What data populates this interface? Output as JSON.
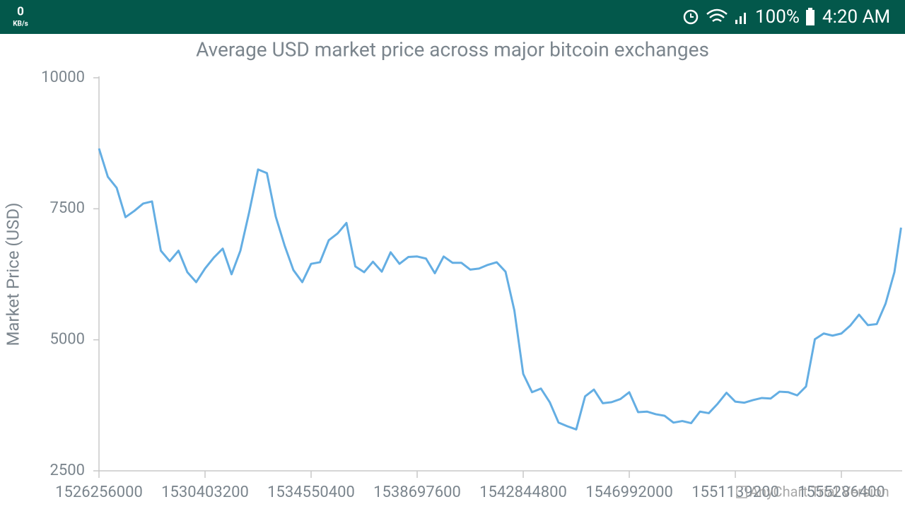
{
  "status_bar": {
    "network_speed": "0",
    "network_unit": "KB/s",
    "battery": "100%",
    "time": "4:20 AM"
  },
  "watermark": "AnyChart Trial Version",
  "chart_data": {
    "type": "line",
    "title": "Average USD market price across major bitcoin exchanges",
    "y_label": "Market Price (USD)",
    "color": "#64aee3",
    "x": [
      1526256000,
      1526601600,
      1526947200,
      1527292800,
      1527638400,
      1527984000,
      1528329600,
      1528675200,
      1529020800,
      1529366400,
      1529712000,
      1530057600,
      1530403200,
      1530748800,
      1531094400,
      1531440000,
      1531785600,
      1532131200,
      1532476800,
      1532822400,
      1533168000,
      1533513600,
      1533859200,
      1534204800,
      1534550400,
      1534896000,
      1535241600,
      1535587200,
      1535932800,
      1536278400,
      1536624000,
      1536969600,
      1537315200,
      1537660800,
      1538006400,
      1538352000,
      1538697600,
      1539043200,
      1539388800,
      1539734400,
      1540080000,
      1540425600,
      1540771200,
      1541116800,
      1541462400,
      1541808000,
      1542153600,
      1542499200,
      1542844800,
      1543190400,
      1543536000,
      1543881600,
      1544227200,
      1544572800,
      1544918400,
      1545264000,
      1545609600,
      1545955200,
      1546300800,
      1546646400,
      1546992000,
      1547337600,
      1547683200,
      1548028800,
      1548374400,
      1548720000,
      1549065600,
      1549411200,
      1549756800,
      1550102400,
      1550448000,
      1550793600,
      1551139200,
      1551484800,
      1551830400,
      1552176000,
      1552521600,
      1552867200,
      1553212800,
      1553558400,
      1553904000,
      1554249600,
      1554595200,
      1554940800,
      1555286400,
      1555632000,
      1555977600,
      1556323200,
      1556668800,
      1557014400,
      1557360000,
      1557619200
    ],
    "values": [
      8650,
      8110,
      7900,
      7340,
      7460,
      7600,
      7640,
      6700,
      6500,
      6700,
      6290,
      6100,
      6360,
      6570,
      6740,
      6250,
      6700,
      7440,
      8250,
      8180,
      7350,
      6800,
      6330,
      6100,
      6450,
      6480,
      6900,
      7030,
      7230,
      6400,
      6290,
      6490,
      6300,
      6670,
      6450,
      6580,
      6590,
      6550,
      6270,
      6590,
      6470,
      6470,
      6340,
      6360,
      6430,
      6480,
      6300,
      5560,
      4350,
      4000,
      4070,
      3810,
      3420,
      3350,
      3290,
      3920,
      4050,
      3790,
      3810,
      3870,
      4000,
      3620,
      3630,
      3580,
      3550,
      3420,
      3450,
      3410,
      3630,
      3600,
      3780,
      3990,
      3820,
      3800,
      3850,
      3890,
      3880,
      4010,
      4000,
      3940,
      4110,
      5010,
      5120,
      5080,
      5120,
      5270,
      5480,
      5280,
      5300,
      5690,
      6290,
      7140
    ],
    "xlim": [
      1526256000,
      1557619200
    ],
    "xticks": [
      1526256000,
      1530403200,
      1534550400,
      1538697600,
      1542844800,
      1546992000,
      1551139200,
      1555286400
    ],
    "ylim": [
      2500,
      10000
    ],
    "yticks": [
      2500,
      5000,
      7500,
      10000
    ]
  }
}
